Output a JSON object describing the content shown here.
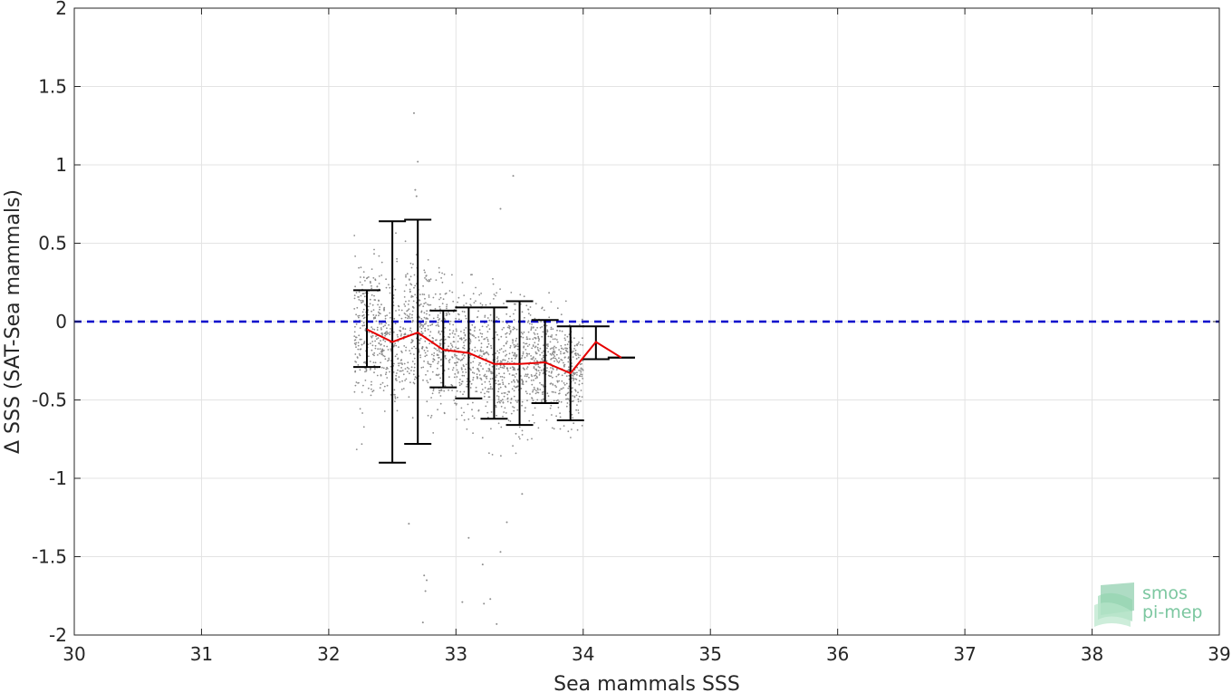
{
  "chart_data": {
    "type": "scatter",
    "title": "",
    "xlabel": "Sea mammals SSS",
    "ylabel": "Δ SSS (SAT-Sea mammals)",
    "xlim": [
      30,
      39
    ],
    "ylim": [
      -2,
      2
    ],
    "xticks": [
      30,
      31,
      32,
      33,
      34,
      35,
      36,
      37,
      38,
      39
    ],
    "yticks": [
      2,
      1.5,
      1,
      0.5,
      0,
      -0.5,
      -1,
      -1.5,
      -2
    ],
    "ytick_labels": [
      "2",
      "1.5",
      "1",
      "0.5",
      "0",
      "-0.5",
      "-1",
      "-1.5",
      "-2"
    ],
    "xtick_labels": [
      "30",
      "31",
      "32",
      "33",
      "34",
      "35",
      "36",
      "37",
      "38",
      "39"
    ],
    "grid": true,
    "reference_line": {
      "y": 0,
      "style": "dashed",
      "color": "#0000cc"
    },
    "binned_mean": {
      "color": "#e60000",
      "x": [
        32.3,
        32.5,
        32.7,
        32.9,
        33.1,
        33.3,
        33.5,
        33.7,
        33.9,
        34.1,
        34.3
      ],
      "y": [
        -0.05,
        -0.13,
        -0.07,
        -0.18,
        -0.2,
        -0.27,
        -0.27,
        -0.26,
        -0.33,
        -0.13,
        -0.23
      ]
    },
    "error_bars": {
      "color": "#000000",
      "x": [
        32.3,
        32.5,
        32.7,
        32.9,
        33.1,
        33.3,
        33.5,
        33.7,
        33.9,
        34.1,
        34.3
      ],
      "upper": [
        0.2,
        0.64,
        0.65,
        0.07,
        0.09,
        0.09,
        0.13,
        0.01,
        -0.03,
        -0.03,
        -0.23
      ],
      "lower": [
        -0.29,
        -0.9,
        -0.78,
        -0.42,
        -0.49,
        -0.62,
        -0.66,
        -0.52,
        -0.63,
        -0.24,
        -0.23
      ]
    },
    "scatter": {
      "color": "#8c8c8c",
      "description_of_cloud": "approx. 2000 grey points spread over x 32.2–34.0",
      "outliers": [
        {
          "x": 32.67,
          "y": 1.33
        },
        {
          "x": 32.7,
          "y": 1.02
        },
        {
          "x": 32.68,
          "y": 0.84
        },
        {
          "x": 32.69,
          "y": 0.8
        },
        {
          "x": 33.45,
          "y": 0.93
        },
        {
          "x": 33.35,
          "y": 0.72
        },
        {
          "x": 32.75,
          "y": -1.62
        },
        {
          "x": 32.77,
          "y": -1.65
        },
        {
          "x": 32.76,
          "y": -1.72
        },
        {
          "x": 32.74,
          "y": -1.92
        },
        {
          "x": 33.05,
          "y": -1.79
        },
        {
          "x": 33.22,
          "y": -1.8
        },
        {
          "x": 33.27,
          "y": -1.77
        },
        {
          "x": 33.32,
          "y": -1.93
        },
        {
          "x": 33.21,
          "y": -1.55
        },
        {
          "x": 32.63,
          "y": -1.29
        },
        {
          "x": 33.1,
          "y": -1.38
        },
        {
          "x": 33.35,
          "y": -1.47
        },
        {
          "x": 33.4,
          "y": -1.28
        },
        {
          "x": 33.52,
          "y": -1.1
        }
      ]
    }
  },
  "logo": {
    "line1": "smos",
    "line2": "pi-mep"
  }
}
